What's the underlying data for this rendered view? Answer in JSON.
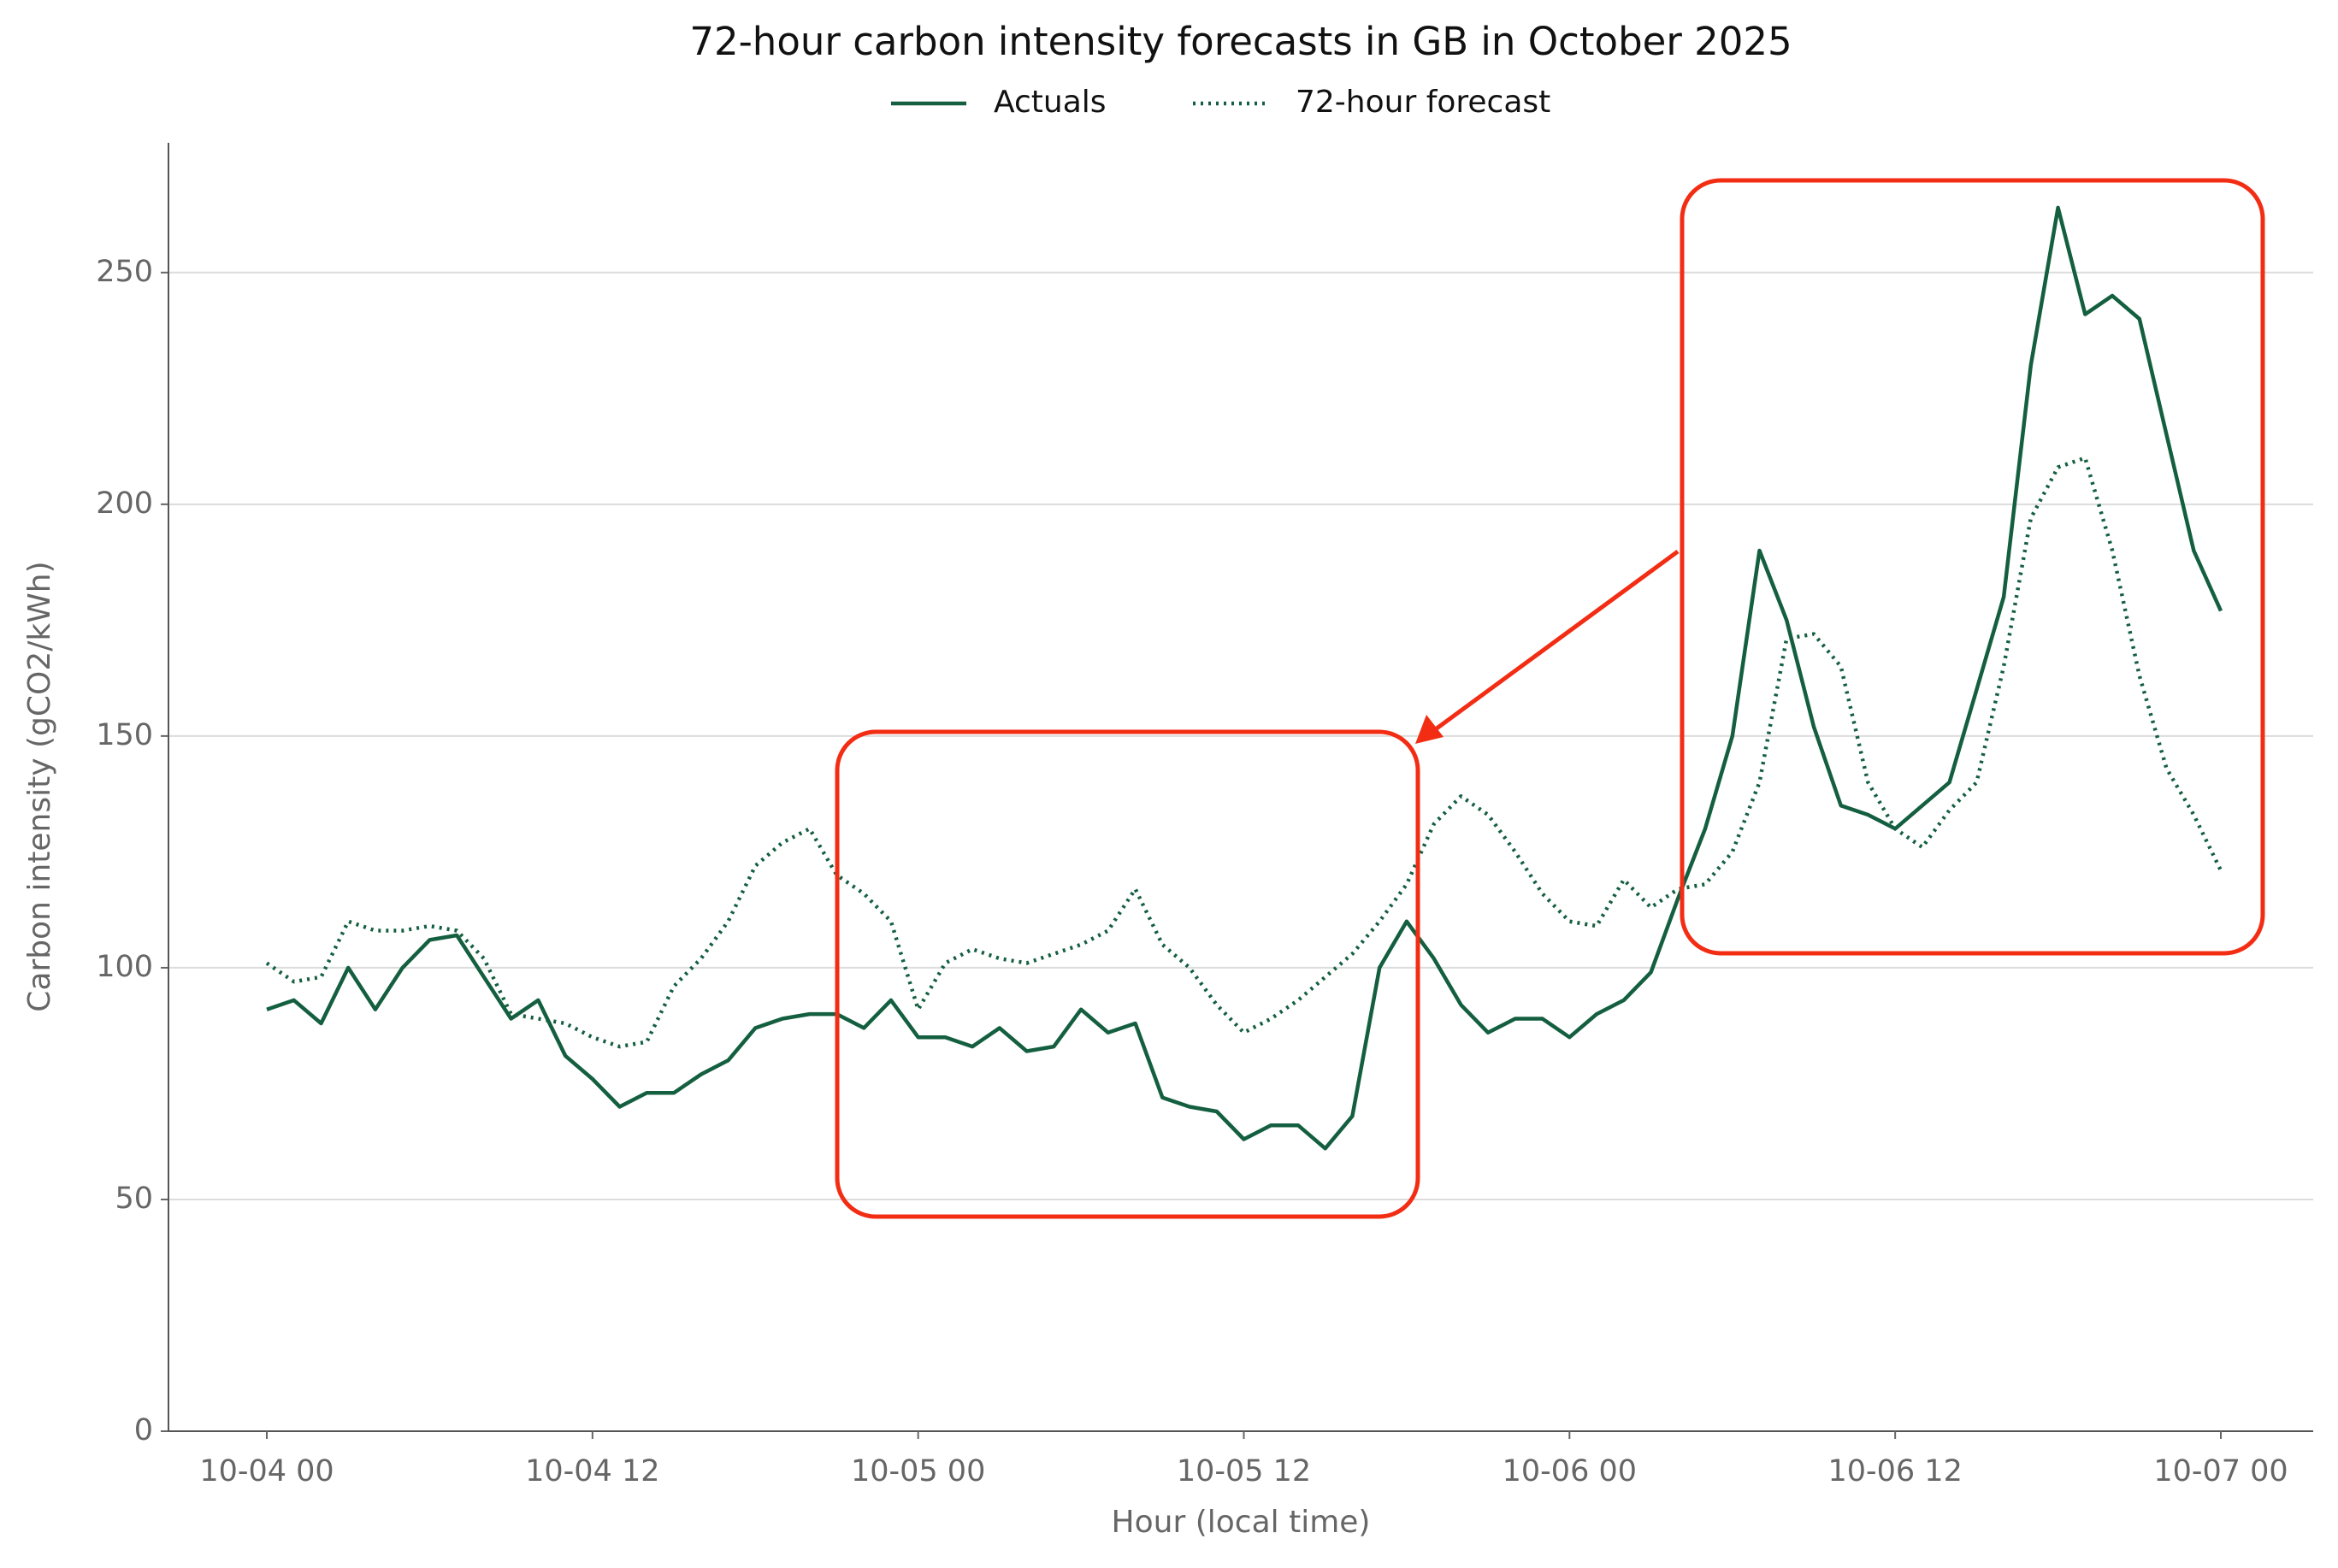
{
  "chart_data": {
    "type": "line",
    "title": "72-hour carbon intensity forecasts in GB in October 2025",
    "x_label": "Hour (local time)",
    "y_label": "Carbon intensity (gCO2/kWh)",
    "x": [
      "10-04 00",
      "10-04 01",
      "10-04 02",
      "10-04 03",
      "10-04 04",
      "10-04 05",
      "10-04 06",
      "10-04 07",
      "10-04 08",
      "10-04 09",
      "10-04 10",
      "10-04 11",
      "10-04 12",
      "10-04 13",
      "10-04 14",
      "10-04 15",
      "10-04 16",
      "10-04 17",
      "10-04 18",
      "10-04 19",
      "10-04 20",
      "10-04 21",
      "10-04 22",
      "10-04 23",
      "10-05 00",
      "10-05 01",
      "10-05 02",
      "10-05 03",
      "10-05 04",
      "10-05 05",
      "10-05 06",
      "10-05 07",
      "10-05 08",
      "10-05 09",
      "10-05 10",
      "10-05 11",
      "10-05 12",
      "10-05 13",
      "10-05 14",
      "10-05 15",
      "10-05 16",
      "10-05 17",
      "10-05 18",
      "10-05 19",
      "10-05 20",
      "10-05 21",
      "10-05 22",
      "10-05 23",
      "10-06 00",
      "10-06 01",
      "10-06 02",
      "10-06 03",
      "10-06 04",
      "10-06 05",
      "10-06 06",
      "10-06 07",
      "10-06 08",
      "10-06 09",
      "10-06 10",
      "10-06 11",
      "10-06 12",
      "10-06 13",
      "10-06 14",
      "10-06 15",
      "10-06 16",
      "10-06 17",
      "10-06 18",
      "10-06 19",
      "10-06 20",
      "10-06 21",
      "10-06 22",
      "10-06 23",
      "10-07 00"
    ],
    "series": [
      {
        "name": "Actuals",
        "color": "#145f40",
        "style": "solid",
        "values": [
          91,
          93,
          88,
          100,
          91,
          100,
          106,
          107,
          98,
          89,
          93,
          81,
          76,
          70,
          73,
          73,
          77,
          80,
          87,
          89,
          90,
          90,
          87,
          93,
          85,
          85,
          83,
          87,
          82,
          83,
          91,
          86,
          88,
          72,
          70,
          69,
          63,
          66,
          66,
          61,
          68,
          100,
          110,
          102,
          92,
          86,
          89,
          89,
          85,
          90,
          93,
          99,
          115,
          130,
          150,
          190,
          175,
          152,
          135,
          133,
          130,
          135,
          140,
          160,
          180,
          230,
          264,
          241,
          245,
          240,
          215,
          190,
          177
        ]
      },
      {
        "name": "72-hour forecast",
        "color": "#145f40",
        "style": "dotted",
        "values": [
          101,
          97,
          98,
          110,
          108,
          108,
          109,
          108,
          102,
          90,
          89,
          88,
          85,
          83,
          84,
          96,
          102,
          110,
          122,
          127,
          130,
          120,
          116,
          110,
          91,
          101,
          104,
          102,
          101,
          103,
          105,
          108,
          117,
          105,
          100,
          92,
          86,
          89,
          93,
          98,
          103,
          110,
          118,
          131,
          137,
          133,
          125,
          116,
          110,
          109,
          119,
          113,
          117,
          118,
          125,
          140,
          171,
          172,
          165,
          140,
          130,
          126,
          134,
          140,
          165,
          197,
          208,
          210,
          190,
          163,
          143,
          133,
          121
        ]
      }
    ],
    "xticks": [
      "10-04 00",
      "10-04 12",
      "10-05 00",
      "10-05 12",
      "10-06 00",
      "10-06 12",
      "10-07 00"
    ],
    "ylim": [
      0,
      278
    ],
    "yticks": [
      0,
      50,
      100,
      150,
      200,
      250
    ],
    "grid": true,
    "legend": "top"
  }
}
